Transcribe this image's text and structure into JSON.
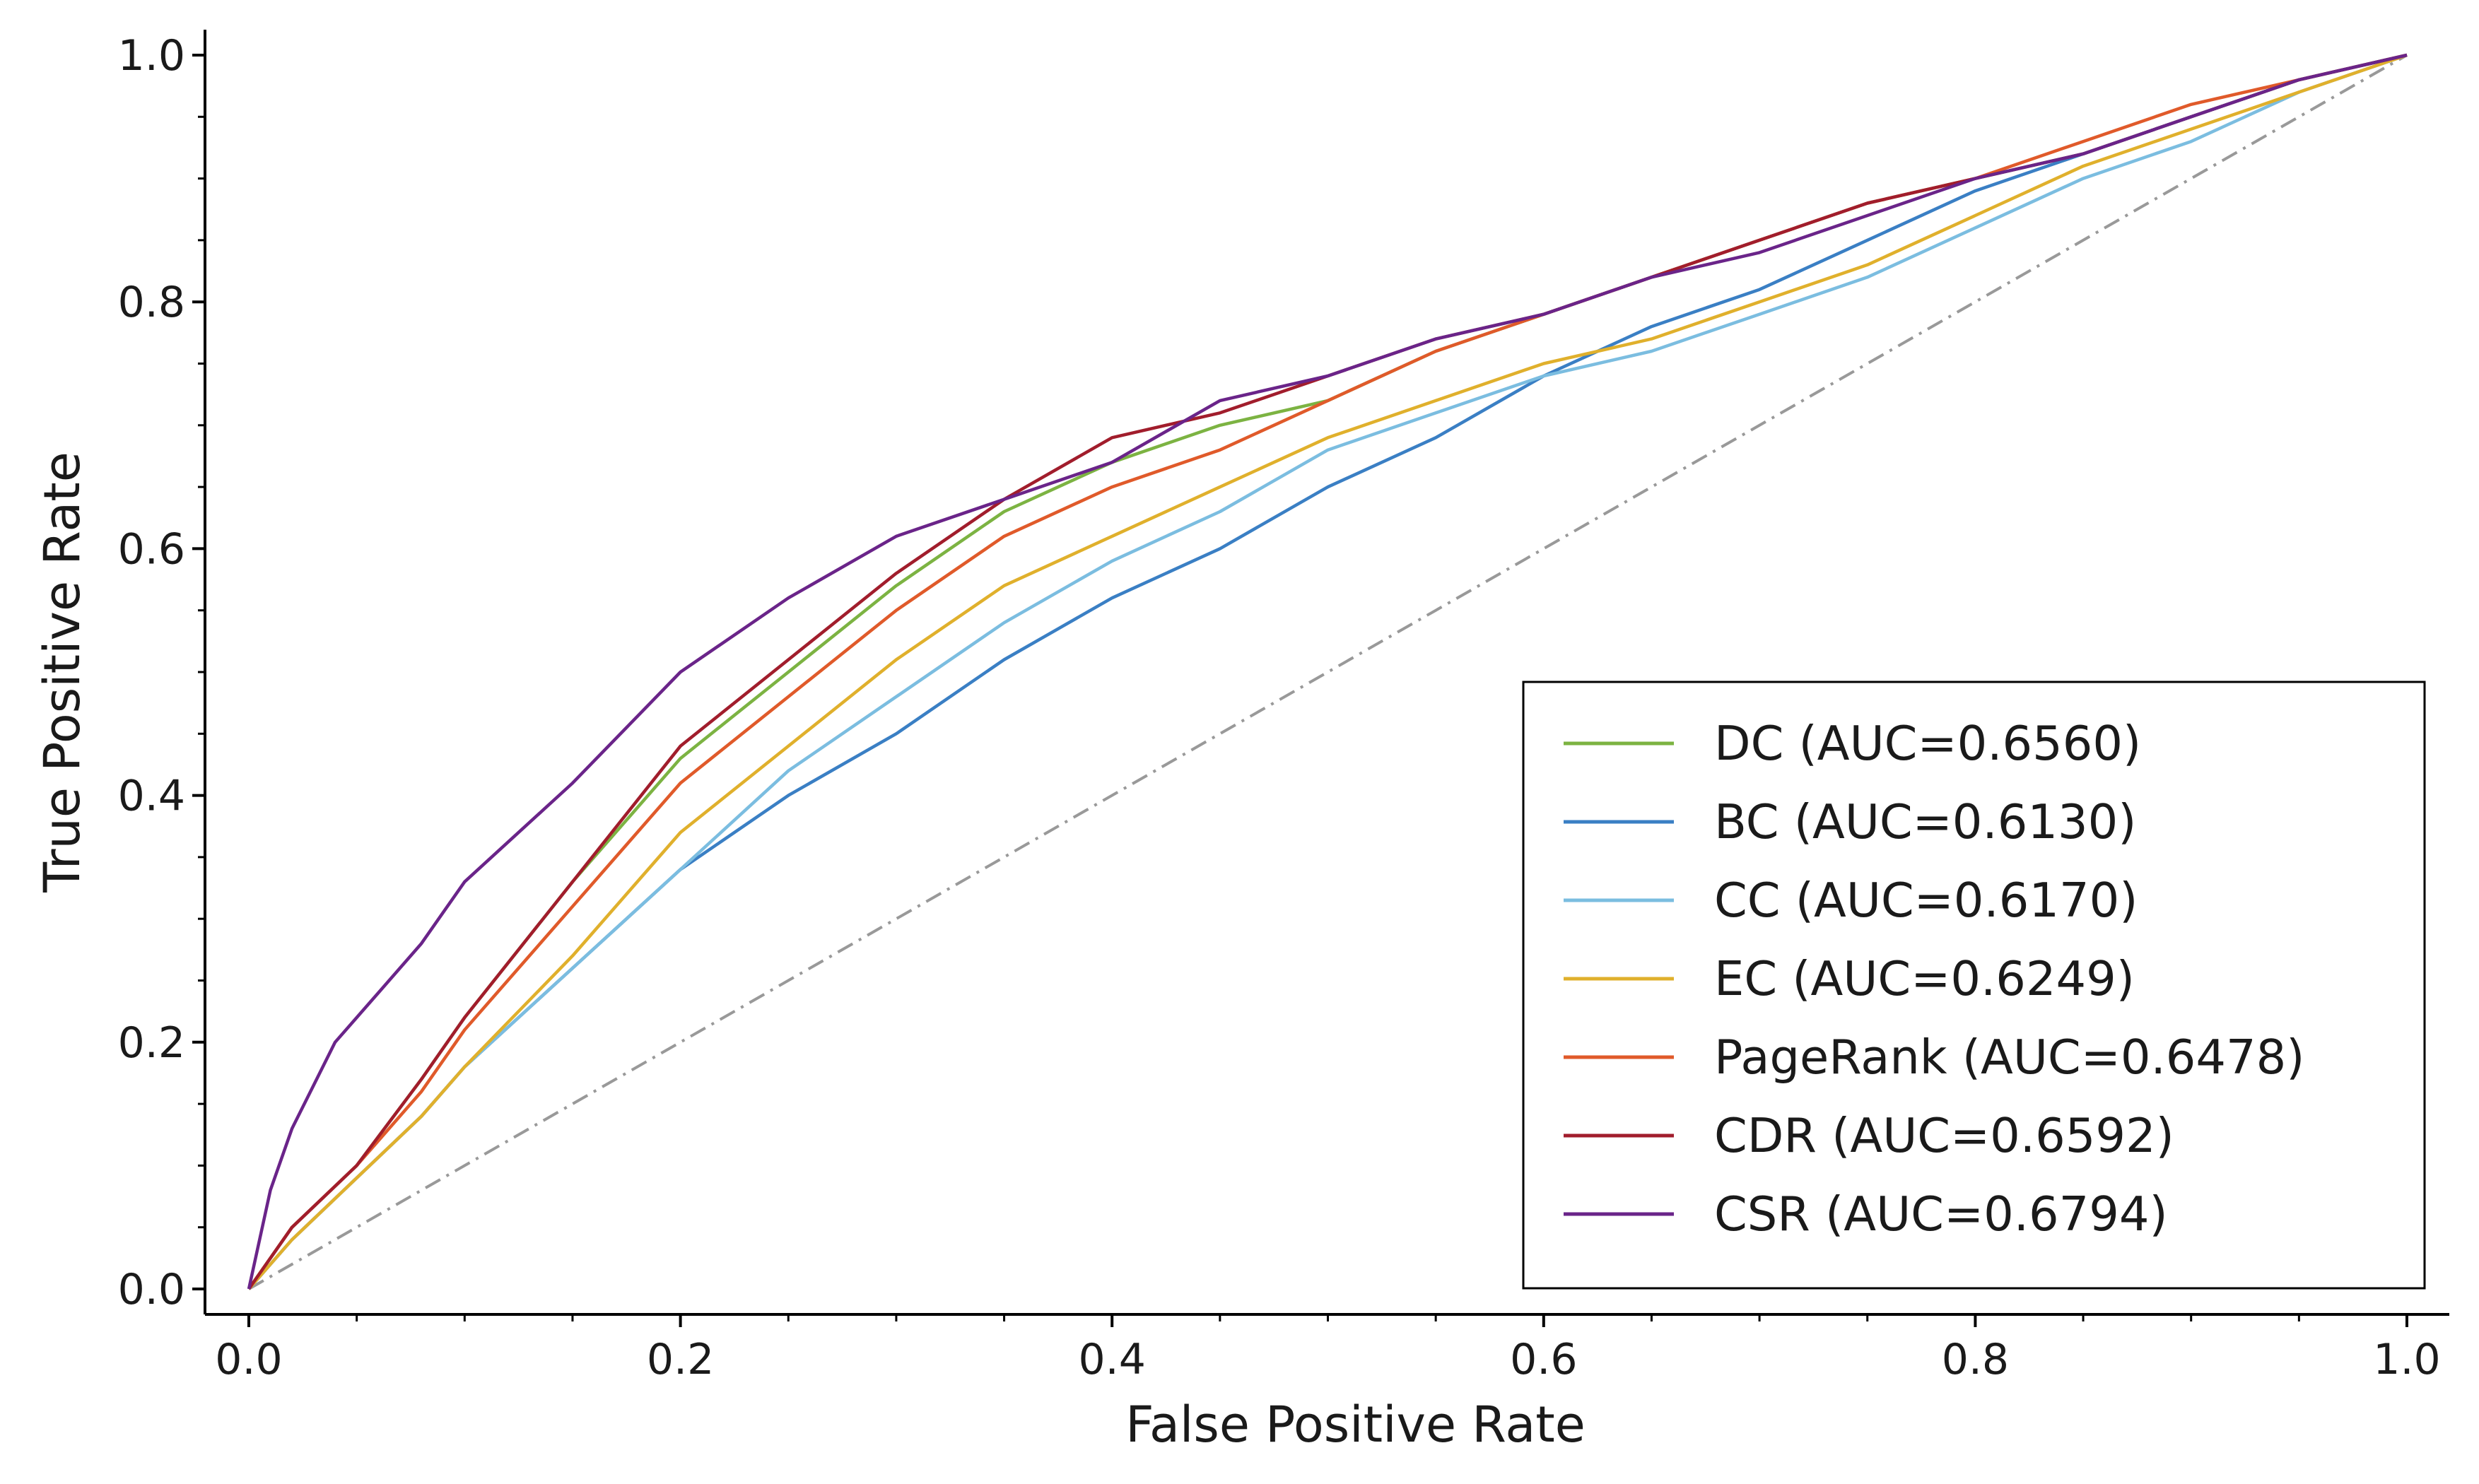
{
  "chart_data": {
    "type": "line",
    "xlabel": "False Positive Rate",
    "ylabel": "True Positive Rate",
    "xlim": [
      -0.02,
      1.02
    ],
    "ylim": [
      -0.02,
      1.02
    ],
    "xticks": [
      "0.0",
      "0.2",
      "0.4",
      "0.6",
      "0.8",
      "1.0"
    ],
    "yticks": [
      "0.0",
      "0.2",
      "0.4",
      "0.6",
      "0.8",
      "1.0"
    ],
    "grid": false,
    "legend_position": "lower-right",
    "reference_line": {
      "x": [
        0,
        1
      ],
      "y": [
        0,
        1
      ],
      "style": "dash-dot",
      "color": "#999999"
    },
    "series": [
      {
        "name": "DC (AUC=0.6560)",
        "color": "#7cb342",
        "x": [
          0,
          0.02,
          0.05,
          0.08,
          0.1,
          0.15,
          0.2,
          0.25,
          0.3,
          0.35,
          0.4,
          0.45,
          0.5,
          0.55,
          0.6,
          0.65,
          0.7,
          0.75,
          0.8,
          0.85,
          0.9,
          0.95,
          1.0
        ],
        "y": [
          0,
          0.05,
          0.1,
          0.17,
          0.22,
          0.33,
          0.43,
          0.5,
          0.57,
          0.63,
          0.67,
          0.7,
          0.72,
          0.76,
          0.79,
          0.82,
          0.85,
          0.88,
          0.9,
          0.92,
          0.95,
          0.98,
          1.0
        ]
      },
      {
        "name": "BC (AUC=0.6130)",
        "color": "#3a7fc4",
        "x": [
          0,
          0.02,
          0.05,
          0.08,
          0.1,
          0.15,
          0.2,
          0.25,
          0.3,
          0.35,
          0.4,
          0.45,
          0.5,
          0.55,
          0.6,
          0.65,
          0.7,
          0.75,
          0.8,
          0.85,
          0.9,
          0.95,
          1.0
        ],
        "y": [
          0,
          0.04,
          0.09,
          0.14,
          0.18,
          0.26,
          0.34,
          0.4,
          0.45,
          0.51,
          0.56,
          0.6,
          0.65,
          0.69,
          0.74,
          0.78,
          0.81,
          0.85,
          0.89,
          0.92,
          0.95,
          0.98,
          1.0
        ]
      },
      {
        "name": "CC (AUC=0.6170)",
        "color": "#7bbde0",
        "x": [
          0,
          0.02,
          0.05,
          0.08,
          0.1,
          0.15,
          0.2,
          0.25,
          0.3,
          0.35,
          0.4,
          0.45,
          0.5,
          0.55,
          0.6,
          0.65,
          0.7,
          0.75,
          0.8,
          0.85,
          0.9,
          0.95,
          1.0
        ],
        "y": [
          0,
          0.04,
          0.09,
          0.14,
          0.18,
          0.26,
          0.34,
          0.42,
          0.48,
          0.54,
          0.59,
          0.63,
          0.68,
          0.71,
          0.74,
          0.76,
          0.79,
          0.82,
          0.86,
          0.9,
          0.93,
          0.97,
          1.0
        ]
      },
      {
        "name": "EC (AUC=0.6249)",
        "color": "#e0b02c",
        "x": [
          0,
          0.02,
          0.05,
          0.08,
          0.1,
          0.15,
          0.2,
          0.25,
          0.3,
          0.35,
          0.4,
          0.45,
          0.5,
          0.55,
          0.6,
          0.65,
          0.7,
          0.75,
          0.8,
          0.85,
          0.9,
          0.95,
          1.0
        ],
        "y": [
          0,
          0.04,
          0.09,
          0.14,
          0.18,
          0.27,
          0.37,
          0.44,
          0.51,
          0.57,
          0.61,
          0.65,
          0.69,
          0.72,
          0.75,
          0.77,
          0.8,
          0.83,
          0.87,
          0.91,
          0.94,
          0.97,
          1.0
        ]
      },
      {
        "name": "PageRank (AUC=0.6478)",
        "color": "#e05a2a",
        "x": [
          0,
          0.02,
          0.05,
          0.08,
          0.1,
          0.15,
          0.2,
          0.25,
          0.3,
          0.35,
          0.4,
          0.45,
          0.5,
          0.55,
          0.6,
          0.65,
          0.7,
          0.75,
          0.8,
          0.85,
          0.9,
          0.95,
          1.0
        ],
        "y": [
          0,
          0.05,
          0.1,
          0.16,
          0.21,
          0.31,
          0.41,
          0.48,
          0.55,
          0.61,
          0.65,
          0.68,
          0.72,
          0.76,
          0.79,
          0.82,
          0.85,
          0.88,
          0.9,
          0.93,
          0.96,
          0.98,
          1.0
        ]
      },
      {
        "name": "CDR (AUC=0.6592)",
        "color": "#a11d2c",
        "x": [
          0,
          0.02,
          0.05,
          0.08,
          0.1,
          0.15,
          0.2,
          0.25,
          0.3,
          0.35,
          0.4,
          0.45,
          0.5,
          0.55,
          0.6,
          0.65,
          0.7,
          0.75,
          0.8,
          0.85,
          0.9,
          0.95,
          1.0
        ],
        "y": [
          0,
          0.05,
          0.1,
          0.17,
          0.22,
          0.33,
          0.44,
          0.51,
          0.58,
          0.64,
          0.69,
          0.71,
          0.74,
          0.77,
          0.79,
          0.82,
          0.85,
          0.88,
          0.9,
          0.92,
          0.95,
          0.98,
          1.0
        ]
      },
      {
        "name": "CSR (AUC=0.6794)",
        "color": "#6a2489",
        "x": [
          0,
          0.01,
          0.02,
          0.04,
          0.06,
          0.08,
          0.1,
          0.15,
          0.2,
          0.25,
          0.3,
          0.35,
          0.4,
          0.45,
          0.5,
          0.55,
          0.6,
          0.65,
          0.7,
          0.75,
          0.8,
          0.85,
          0.9,
          0.95,
          1.0
        ],
        "y": [
          0,
          0.08,
          0.13,
          0.2,
          0.24,
          0.28,
          0.33,
          0.41,
          0.5,
          0.56,
          0.61,
          0.64,
          0.67,
          0.72,
          0.74,
          0.77,
          0.79,
          0.82,
          0.84,
          0.87,
          0.9,
          0.92,
          0.95,
          0.98,
          1.0
        ]
      }
    ]
  }
}
